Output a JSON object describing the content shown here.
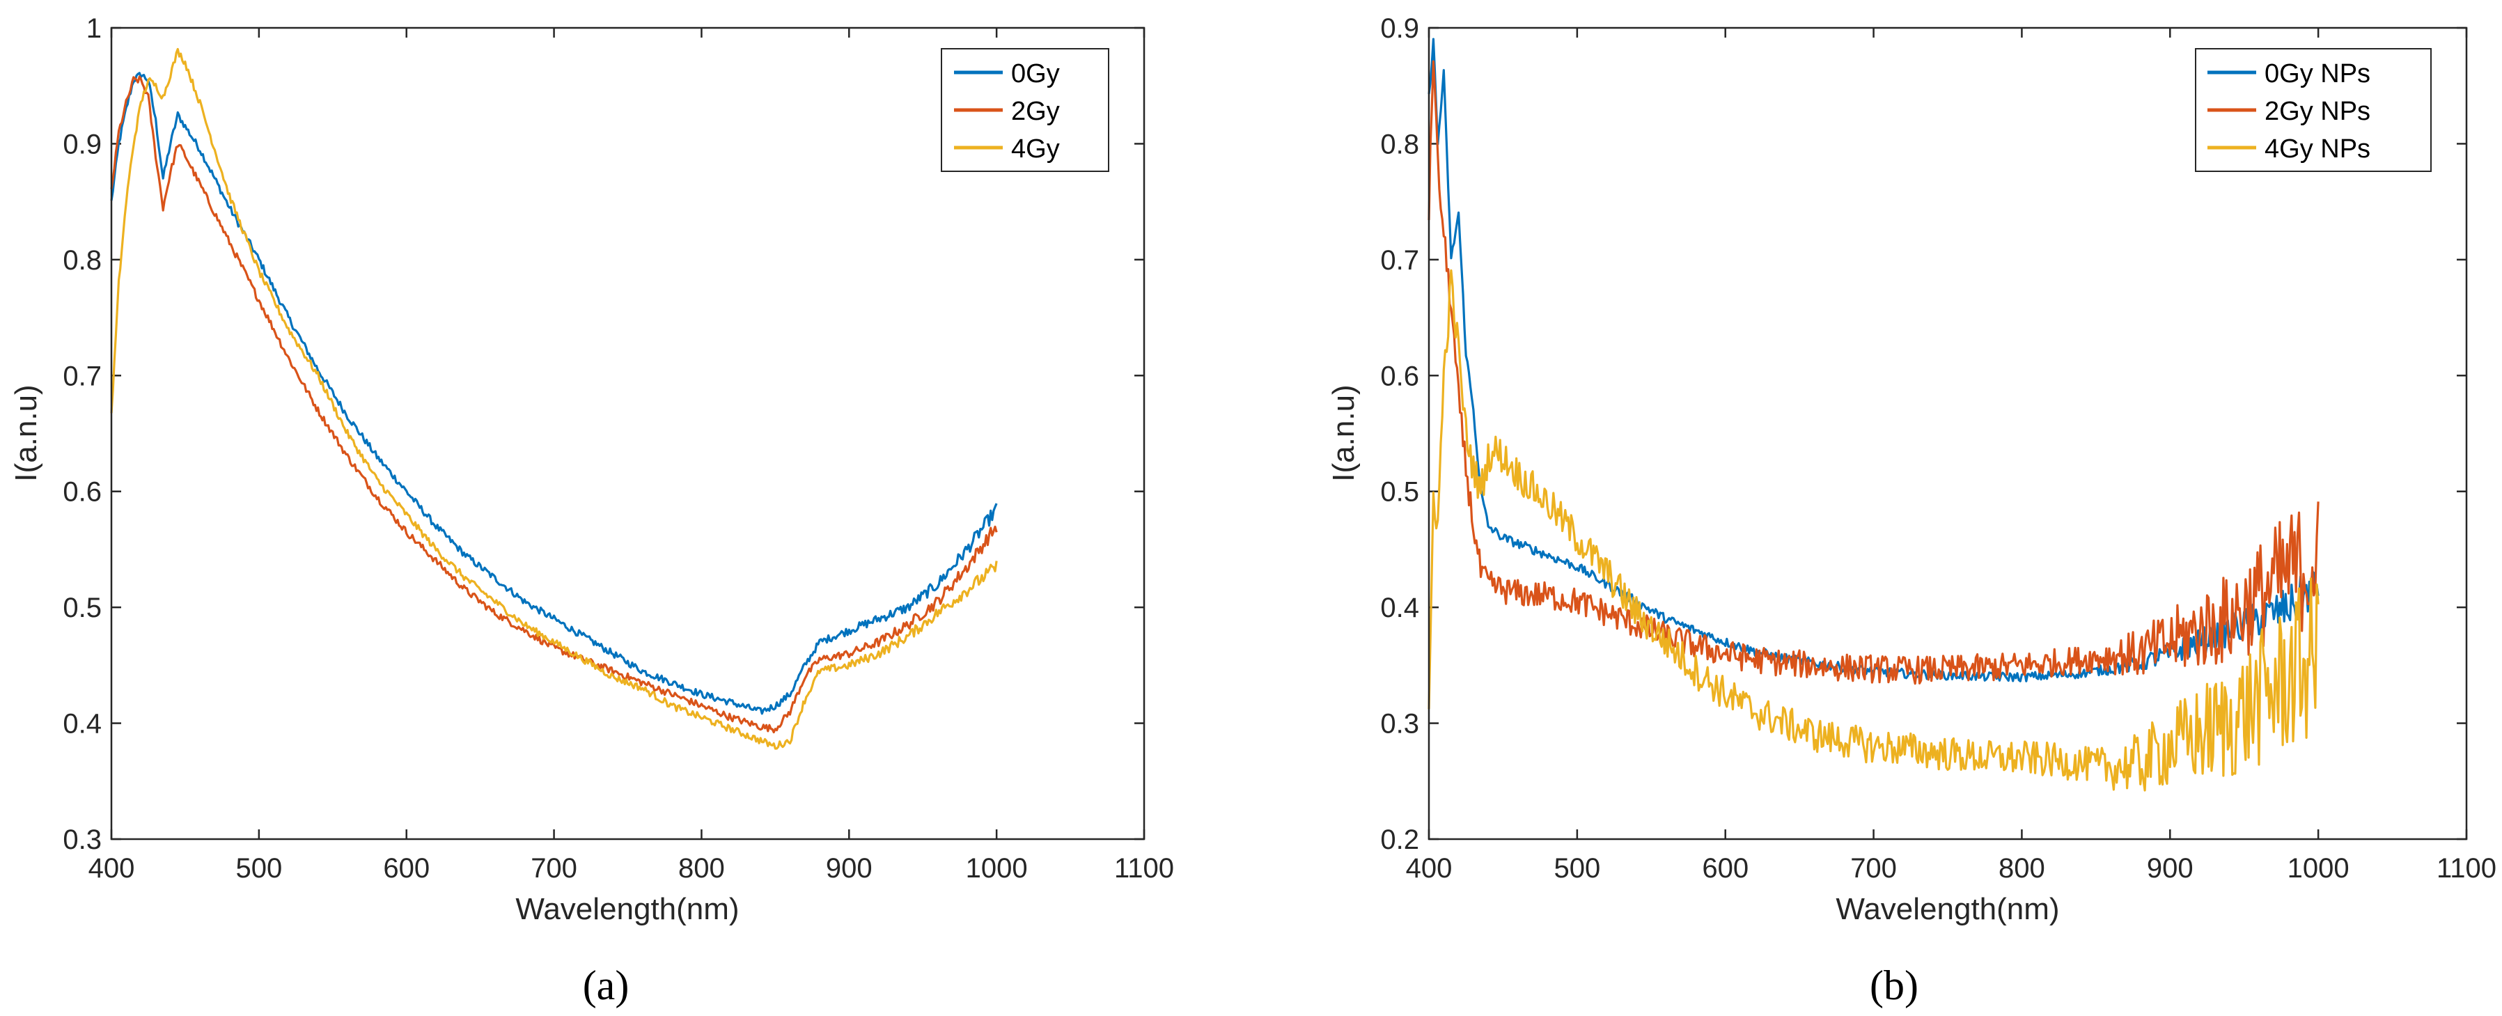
{
  "chart_data": [
    {
      "type": "line",
      "panel_label": "(a)",
      "xlabel": "Wavelength(nm)",
      "ylabel": "I(a.n.u)",
      "xlim": [
        400,
        1100
      ],
      "ylim": [
        0.3,
        1.0
      ],
      "xticks": [
        "400",
        "500",
        "600",
        "700",
        "800",
        "900",
        "1000",
        "1100"
      ],
      "yticks": [
        "0.3",
        "0.4",
        "0.5",
        "0.6",
        "0.7",
        "0.8",
        "0.9",
        "1"
      ],
      "xtick_values": [
        400,
        500,
        600,
        700,
        800,
        900,
        1000,
        1100
      ],
      "ytick_values": [
        0.3,
        0.4,
        0.5,
        0.6,
        0.7,
        0.8,
        0.9,
        1.0
      ],
      "legend_position": "top-right",
      "series": [
        {
          "name": "0Gy",
          "color": "#0072BD",
          "noise": 0.003,
          "x": [
            400,
            405,
            410,
            415,
            420,
            425,
            430,
            435,
            440,
            445,
            450,
            460,
            470,
            480,
            500,
            520,
            540,
            560,
            580,
            600,
            620,
            640,
            660,
            680,
            700,
            720,
            740,
            760,
            780,
            800,
            820,
            840,
            850,
            860,
            870,
            880,
            900,
            920,
            940,
            960,
            980,
            1000
          ],
          "y": [
            0.85,
            0.9,
            0.93,
            0.955,
            0.96,
            0.955,
            0.92,
            0.87,
            0.9,
            0.925,
            0.915,
            0.895,
            0.87,
            0.845,
            0.8,
            0.75,
            0.705,
            0.665,
            0.63,
            0.6,
            0.57,
            0.545,
            0.525,
            0.505,
            0.49,
            0.475,
            0.46,
            0.445,
            0.435,
            0.425,
            0.418,
            0.41,
            0.415,
            0.425,
            0.45,
            0.47,
            0.48,
            0.49,
            0.5,
            0.52,
            0.55,
            0.585
          ]
        },
        {
          "name": "2Gy",
          "color": "#D95319",
          "noise": 0.003,
          "x": [
            400,
            405,
            410,
            415,
            420,
            425,
            430,
            435,
            440,
            445,
            450,
            460,
            470,
            480,
            500,
            520,
            540,
            560,
            580,
            600,
            620,
            640,
            660,
            680,
            700,
            720,
            740,
            760,
            780,
            800,
            820,
            840,
            850,
            860,
            870,
            880,
            900,
            920,
            940,
            960,
            980,
            1000
          ],
          "y": [
            0.86,
            0.91,
            0.935,
            0.955,
            0.955,
            0.94,
            0.89,
            0.845,
            0.875,
            0.9,
            0.89,
            0.865,
            0.84,
            0.815,
            0.765,
            0.715,
            0.67,
            0.63,
            0.595,
            0.565,
            0.54,
            0.515,
            0.495,
            0.48,
            0.465,
            0.455,
            0.445,
            0.435,
            0.425,
            0.415,
            0.405,
            0.397,
            0.395,
            0.41,
            0.44,
            0.455,
            0.46,
            0.47,
            0.485,
            0.505,
            0.535,
            0.57
          ]
        },
        {
          "name": "4Gy",
          "color": "#EDB120",
          "noise": 0.003,
          "x": [
            400,
            405,
            410,
            415,
            420,
            425,
            430,
            435,
            440,
            445,
            450,
            460,
            470,
            480,
            500,
            520,
            540,
            560,
            580,
            600,
            620,
            640,
            660,
            680,
            700,
            720,
            740,
            760,
            780,
            800,
            820,
            840,
            850,
            860,
            870,
            880,
            900,
            920,
            940,
            960,
            980,
            1000
          ],
          "y": [
            0.665,
            0.78,
            0.85,
            0.9,
            0.935,
            0.955,
            0.95,
            0.94,
            0.96,
            0.98,
            0.97,
            0.935,
            0.895,
            0.855,
            0.79,
            0.74,
            0.7,
            0.65,
            0.61,
            0.58,
            0.55,
            0.525,
            0.505,
            0.485,
            0.47,
            0.455,
            0.44,
            0.43,
            0.415,
            0.405,
            0.395,
            0.385,
            0.38,
            0.385,
            0.42,
            0.445,
            0.45,
            0.46,
            0.475,
            0.495,
            0.515,
            0.535
          ]
        }
      ]
    },
    {
      "type": "line",
      "panel_label": "(b)",
      "xlabel": "Wavelength(nm)",
      "ylabel": "I(a.n.u)",
      "xlim": [
        400,
        1100
      ],
      "ylim": [
        0.2,
        0.9
      ],
      "xticks": [
        "400",
        "500",
        "600",
        "700",
        "800",
        "900",
        "1000",
        "1100"
      ],
      "yticks": [
        "0.2",
        "0.3",
        "0.4",
        "0.5",
        "0.6",
        "0.7",
        "0.8",
        "0.9"
      ],
      "xtick_values": [
        400,
        500,
        600,
        700,
        800,
        900,
        1000,
        1100
      ],
      "ytick_values": [
        0.2,
        0.3,
        0.4,
        0.5,
        0.6,
        0.7,
        0.8,
        0.9
      ],
      "legend_position": "top-right",
      "series": [
        {
          "name": "0Gy NPs",
          "color": "#0072BD",
          "noise": 0.004,
          "x": [
            400,
            403,
            406,
            410,
            415,
            420,
            425,
            430,
            435,
            440,
            450,
            460,
            480,
            500,
            520,
            540,
            560,
            580,
            600,
            620,
            640,
            660,
            680,
            700,
            720,
            740,
            760,
            780,
            800,
            820,
            840,
            860,
            880,
            900,
            920,
            940,
            960,
            980,
            1000
          ],
          "y": [
            0.84,
            0.89,
            0.8,
            0.86,
            0.7,
            0.74,
            0.62,
            0.57,
            0.5,
            0.47,
            0.46,
            0.455,
            0.445,
            0.435,
            0.42,
            0.405,
            0.39,
            0.38,
            0.37,
            0.362,
            0.356,
            0.352,
            0.348,
            0.345,
            0.343,
            0.342,
            0.341,
            0.34,
            0.34,
            0.341,
            0.343,
            0.347,
            0.352,
            0.36,
            0.37,
            0.38,
            0.39,
            0.4,
            0.42
          ]
        },
        {
          "name": "2Gy NPs",
          "color": "#D95319",
          "noise": 0.012,
          "x": [
            400,
            403,
            406,
            410,
            415,
            420,
            425,
            430,
            435,
            440,
            450,
            460,
            480,
            500,
            520,
            540,
            560,
            580,
            600,
            620,
            640,
            660,
            680,
            700,
            720,
            740,
            760,
            780,
            800,
            820,
            840,
            860,
            880,
            900,
            920,
            940,
            960,
            980,
            1000
          ],
          "y": [
            0.74,
            0.88,
            0.78,
            0.72,
            0.66,
            0.58,
            0.52,
            0.47,
            0.43,
            0.42,
            0.415,
            0.412,
            0.41,
            0.405,
            0.395,
            0.385,
            0.375,
            0.367,
            0.36,
            0.355,
            0.352,
            0.35,
            0.348,
            0.347,
            0.346,
            0.346,
            0.347,
            0.348,
            0.35,
            0.352,
            0.355,
            0.358,
            0.36,
            0.37,
            0.38,
            0.39,
            0.41,
            0.43,
            0.44
          ]
        },
        {
          "name": "4Gy NPs",
          "color": "#EDB120",
          "noise": 0.015,
          "x": [
            400,
            403,
            406,
            410,
            415,
            420,
            425,
            430,
            435,
            440,
            445,
            450,
            460,
            480,
            500,
            520,
            540,
            560,
            580,
            600,
            620,
            640,
            660,
            680,
            700,
            720,
            740,
            760,
            780,
            800,
            820,
            840,
            860,
            880,
            900,
            920,
            940,
            960,
            980,
            1000
          ],
          "y": [
            0.3,
            0.5,
            0.47,
            0.6,
            0.68,
            0.62,
            0.55,
            0.52,
            0.5,
            0.53,
            0.535,
            0.53,
            0.515,
            0.49,
            0.46,
            0.43,
            0.395,
            0.37,
            0.345,
            0.325,
            0.31,
            0.3,
            0.29,
            0.285,
            0.28,
            0.278,
            0.275,
            0.272,
            0.27,
            0.27,
            0.268,
            0.265,
            0.262,
            0.265,
            0.28,
            0.29,
            0.3,
            0.32,
            0.34,
            0.36
          ]
        }
      ]
    }
  ]
}
